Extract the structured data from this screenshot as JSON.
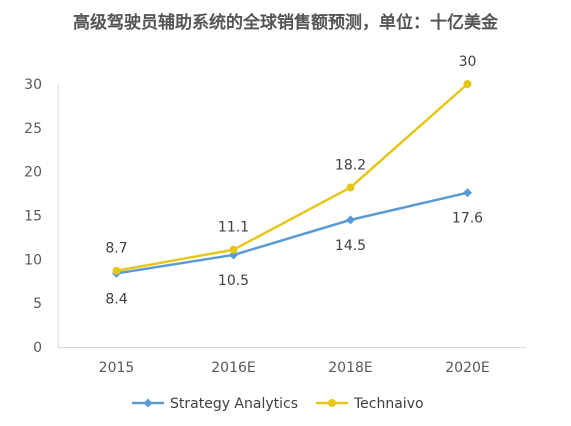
{
  "chart_data": {
    "type": "line",
    "title": "高级驾驶员辅助系统的全球销售额预测，单位：十亿美金",
    "categories": [
      "2015",
      "2016E",
      "2018E",
      "2020E"
    ],
    "ylim": [
      0,
      30
    ],
    "yticks": [
      "0",
      "5",
      "10",
      "15",
      "20",
      "25",
      "30"
    ],
    "grid": false,
    "legend_position": "bottom",
    "series": [
      {
        "name": "Strategy Analytics",
        "values": [
          8.4,
          10.5,
          14.5,
          17.6
        ],
        "labels": [
          "8.4",
          "10.5",
          "14.5",
          "17.6"
        ],
        "label_side": "below",
        "color": "#5B9BD5",
        "marker": "diamond"
      },
      {
        "name": "Technaivo",
        "values": [
          8.7,
          11.1,
          18.2,
          30
        ],
        "labels": [
          "8.7",
          "11.1",
          "18.2",
          "30"
        ],
        "label_side": "above",
        "color": "#E6C619",
        "marker": "circle"
      }
    ]
  }
}
